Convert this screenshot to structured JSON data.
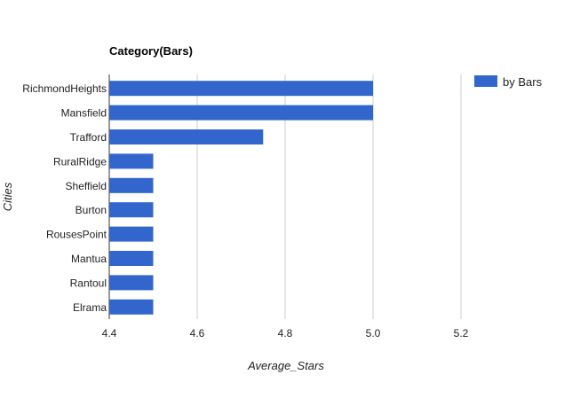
{
  "chart_data": {
    "type": "bar",
    "orientation": "horizontal",
    "title": "Category(Bars)",
    "xlabel": "Average_Stars",
    "ylabel": "Cities",
    "categories": [
      "RichmondHeights",
      "Mansfield",
      "Trafford",
      "RuralRidge",
      "Sheffield",
      "Burton",
      "RousesPoint",
      "Mantua",
      "Rantoul",
      "Elrama"
    ],
    "series": [
      {
        "name": "by Bars",
        "values": [
          5.0,
          5.0,
          4.75,
          4.5,
          4.5,
          4.5,
          4.5,
          4.5,
          4.5,
          4.5
        ],
        "color": "#3366cc"
      }
    ],
    "xlim": [
      4.4,
      5.3
    ],
    "xticks": [
      "4.4",
      "4.6",
      "4.8",
      "5.0",
      "5.2"
    ],
    "grid": true,
    "legend_position": "top-right"
  }
}
